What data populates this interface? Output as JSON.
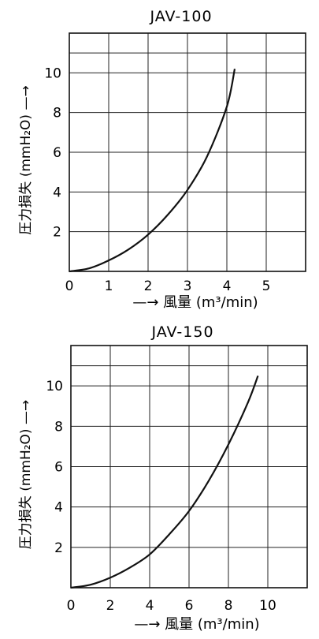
{
  "chart_data": [
    {
      "type": "line",
      "title": "JAV-100",
      "xlabel": "—→ 風量 (m³/min)",
      "ylabel": "圧力損失 (mmH₂O) —→",
      "xlim": [
        0,
        6
      ],
      "ylim": [
        0,
        12
      ],
      "x_ticks": [
        "0",
        "1",
        "2",
        "3",
        "4",
        "5"
      ],
      "y_ticks": [
        "2",
        "4",
        "6",
        "8",
        "10"
      ],
      "grid": true,
      "series": [
        {
          "x": [
            0,
            0.5,
            1.0,
            1.5,
            2.0,
            2.5,
            3.0,
            3.5,
            4.0,
            4.2
          ],
          "values": [
            0,
            0.15,
            0.55,
            1.1,
            1.85,
            2.85,
            4.1,
            5.8,
            8.3,
            10.2
          ]
        }
      ]
    },
    {
      "type": "line",
      "title": "JAV-150",
      "xlabel": "—→ 風量 (m³/min)",
      "ylabel": "圧力損失 (mmH₂O) —→",
      "xlim": [
        0,
        12
      ],
      "ylim": [
        0,
        12
      ],
      "x_ticks": [
        "0",
        "2",
        "4",
        "6",
        "8",
        "10"
      ],
      "y_ticks": [
        "2",
        "4",
        "6",
        "8",
        "10"
      ],
      "grid": true,
      "series": [
        {
          "x": [
            0,
            1,
            2,
            3,
            4,
            5,
            6,
            7,
            8,
            9,
            9.5
          ],
          "values": [
            0,
            0.15,
            0.5,
            1.0,
            1.65,
            2.65,
            3.8,
            5.3,
            7.1,
            9.2,
            10.5
          ]
        }
      ]
    }
  ]
}
